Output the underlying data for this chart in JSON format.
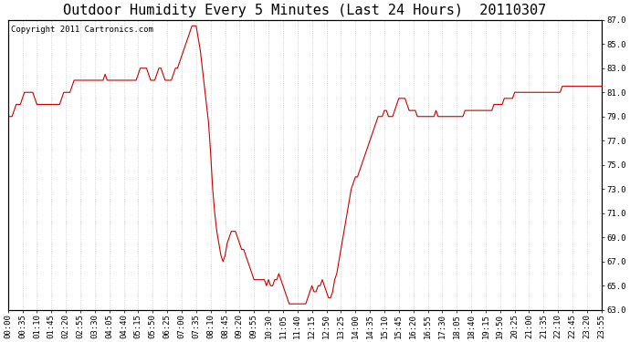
{
  "title": "Outdoor Humidity Every 5 Minutes (Last 24 Hours)  20110307",
  "copyright_text": "Copyright 2011 Cartronics.com",
  "ylim": [
    63.0,
    87.0
  ],
  "yticks": [
    63.0,
    65.0,
    67.0,
    69.0,
    71.0,
    73.0,
    75.0,
    77.0,
    79.0,
    81.0,
    83.0,
    85.0,
    87.0
  ],
  "line_color": "#cc0000",
  "background_color": "#ffffff",
  "grid_color": "#bbbbbb",
  "title_fontsize": 11,
  "tick_fontsize": 6.5,
  "copyright_fontsize": 6.5,
  "x_tick_interval": 7,
  "humidity_data": [
    79.0,
    79.0,
    79.0,
    79.5,
    80.0,
    80.0,
    80.0,
    80.5,
    81.0,
    81.0,
    81.0,
    81.0,
    81.0,
    80.5,
    80.0,
    80.0,
    80.0,
    80.0,
    80.0,
    80.0,
    80.0,
    80.0,
    80.0,
    80.0,
    80.0,
    80.0,
    80.5,
    81.0,
    81.0,
    81.0,
    81.0,
    81.5,
    82.0,
    82.0,
    82.0,
    82.0,
    82.0,
    82.0,
    82.0,
    82.0,
    82.0,
    82.0,
    82.0,
    82.0,
    82.0,
    82.0,
    82.0,
    82.5,
    82.0,
    82.0,
    82.0,
    82.0,
    82.0,
    82.0,
    82.0,
    82.0,
    82.0,
    82.0,
    82.0,
    82.0,
    82.0,
    82.0,
    82.0,
    82.5,
    83.0,
    83.0,
    83.0,
    83.0,
    82.5,
    82.0,
    82.0,
    82.0,
    82.5,
    83.0,
    83.0,
    82.5,
    82.0,
    82.0,
    82.0,
    82.0,
    82.5,
    83.0,
    83.0,
    83.5,
    84.0,
    84.5,
    85.0,
    85.5,
    86.0,
    86.5,
    86.5,
    86.5,
    85.5,
    84.5,
    83.0,
    81.5,
    80.0,
    78.5,
    76.0,
    73.0,
    71.0,
    69.5,
    68.5,
    67.5,
    67.0,
    67.5,
    68.5,
    69.0,
    69.5,
    69.5,
    69.5,
    69.0,
    68.5,
    68.0,
    68.0,
    67.5,
    67.0,
    66.5,
    66.0,
    65.5,
    65.5,
    65.5,
    65.5,
    65.5,
    65.5,
    65.0,
    65.5,
    65.0,
    65.0,
    65.5,
    65.5,
    66.0,
    65.5,
    65.0,
    64.5,
    64.0,
    63.5,
    63.5,
    63.5,
    63.5,
    63.5,
    63.5,
    63.5,
    63.5,
    63.5,
    64.0,
    64.5,
    65.0,
    64.5,
    64.5,
    65.0,
    65.0,
    65.5,
    65.0,
    64.5,
    64.0,
    64.0,
    64.5,
    65.5,
    66.0,
    67.0,
    68.0,
    69.0,
    70.0,
    71.0,
    72.0,
    73.0,
    73.5,
    74.0,
    74.0,
    74.5,
    75.0,
    75.5,
    76.0,
    76.5,
    77.0,
    77.5,
    78.0,
    78.5,
    79.0,
    79.0,
    79.0,
    79.5,
    79.5,
    79.0,
    79.0,
    79.0,
    79.5,
    80.0,
    80.5,
    80.5,
    80.5,
    80.5,
    80.0,
    79.5,
    79.5,
    79.5,
    79.5,
    79.0,
    79.0,
    79.0,
    79.0,
    79.0,
    79.0,
    79.0,
    79.0,
    79.0,
    79.5,
    79.0,
    79.0,
    79.0,
    79.0,
    79.0,
    79.0,
    79.0,
    79.0,
    79.0,
    79.0,
    79.0,
    79.0,
    79.0,
    79.5,
    79.5,
    79.5,
    79.5,
    79.5,
    79.5,
    79.5,
    79.5,
    79.5,
    79.5,
    79.5,
    79.5,
    79.5,
    79.5,
    80.0,
    80.0,
    80.0,
    80.0,
    80.0,
    80.5,
    80.5,
    80.5,
    80.5,
    80.5,
    81.0,
    81.0,
    81.0,
    81.0,
    81.0,
    81.0,
    81.0,
    81.0,
    81.0,
    81.0,
    81.0,
    81.0,
    81.0,
    81.0,
    81.0,
    81.0,
    81.0,
    81.0,
    81.0,
    81.0,
    81.0,
    81.0,
    81.0,
    81.5,
    81.5,
    81.5,
    81.5,
    81.5,
    81.5,
    81.5,
    81.5,
    81.5,
    81.5,
    81.5,
    81.5,
    81.5,
    81.5,
    81.5,
    81.5,
    81.5,
    81.5,
    81.5,
    81.5,
    81.5,
    81.5,
    81.5,
    81.5,
    81.5,
    81.5,
    81.5,
    81.5,
    81.5,
    81.5,
    81.5,
    81.5,
    81.5,
    81.5,
    81.5,
    81.5,
    81.5,
    81.5,
    81.5,
    81.5,
    81.5,
    81.5
  ]
}
